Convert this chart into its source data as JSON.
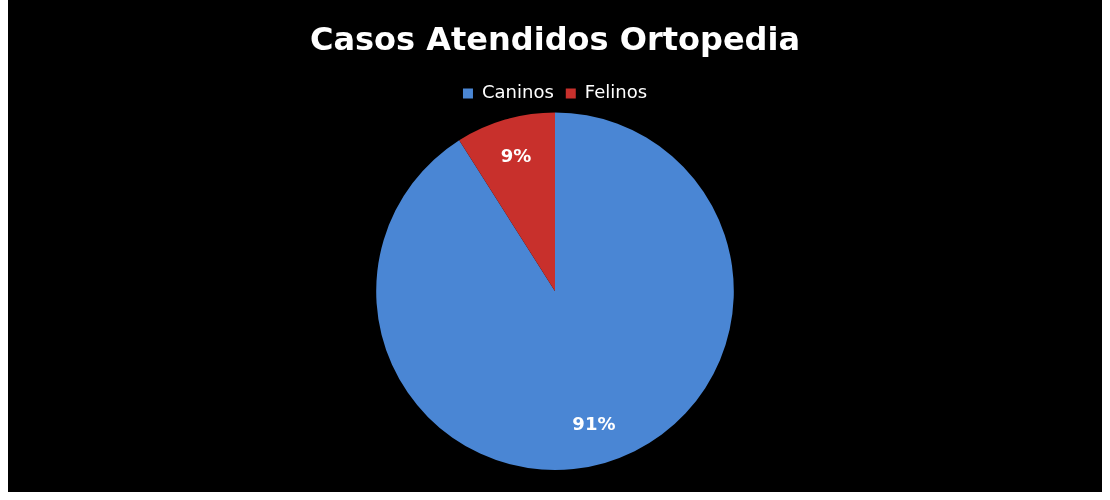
{
  "chart_data": {
    "type": "pie",
    "title": "Casos Atendidos Ortopedia",
    "categories": [
      "Caninos",
      "Felinos"
    ],
    "values": [
      91,
      9
    ],
    "value_labels": [
      "91%",
      "9%"
    ],
    "colors": [
      "#4a86d4",
      "#c8302c"
    ],
    "legend": "top"
  }
}
